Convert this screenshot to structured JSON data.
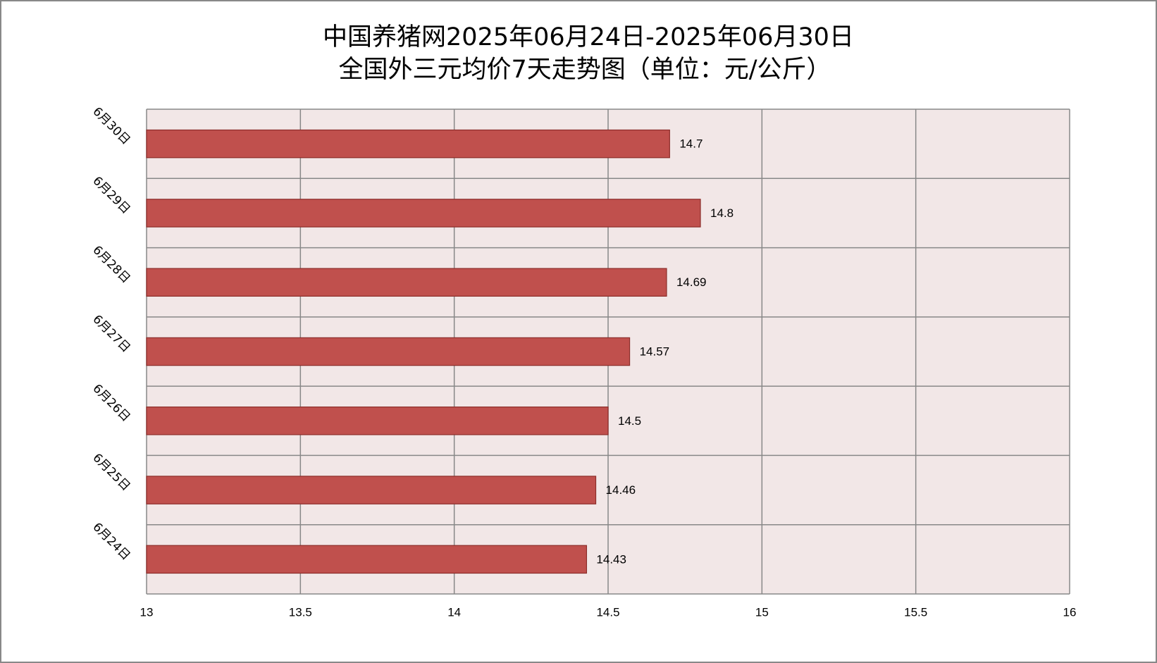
{
  "chart_data": {
    "type": "bar",
    "orientation": "horizontal",
    "title": [
      "中国养猪网2025年06月24日-2025年06月30日",
      "全国外三元均价7天走势图（单位：元/公斤）"
    ],
    "categories": [
      "6月24日",
      "6月25日",
      "6月26日",
      "6月27日",
      "6月28日",
      "6月29日",
      "6月30日"
    ],
    "values": [
      14.43,
      14.46,
      14.5,
      14.57,
      14.69,
      14.8,
      14.7
    ],
    "color": "#c0504d",
    "xlim": [
      13,
      16
    ],
    "xticks": [
      13,
      13.5,
      14,
      14.5,
      15,
      15.5,
      16
    ],
    "grid": true
  }
}
